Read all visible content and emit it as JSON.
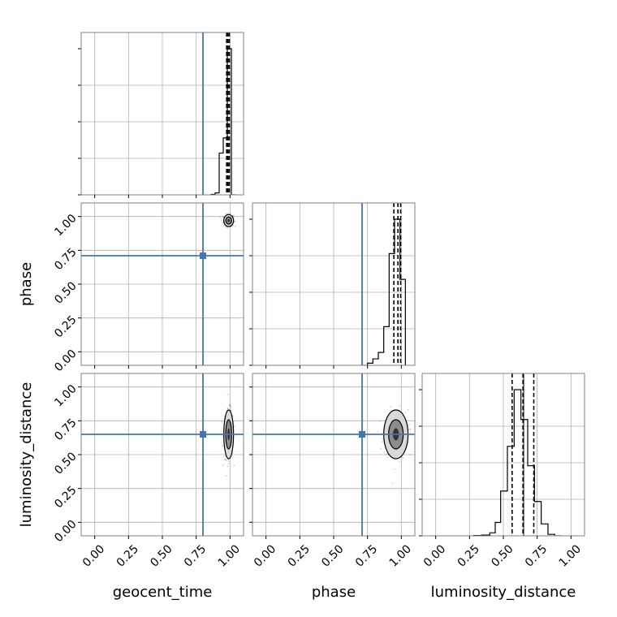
{
  "chart_data": {
    "type": "corner",
    "parameters": [
      "geocent_time",
      "phase",
      "luminosity_distance"
    ],
    "xlabels": [
      "geocent_time",
      "phase",
      "luminosity_distance"
    ],
    "ylabels": [
      "",
      "phase",
      "luminosity_distance"
    ],
    "tick_labels": [
      "0.00",
      "0.25",
      "0.50",
      "0.75",
      "1.00"
    ],
    "tick_values": [
      0.0,
      0.25,
      0.5,
      0.75,
      1.0
    ],
    "range": [
      -0.1,
      1.1
    ],
    "truths": {
      "geocent_time": 0.8,
      "phase": 0.71,
      "luminosity_distance": 0.65
    },
    "truth_color": "#4477aa",
    "grid": true,
    "histograms": [
      {
        "parameter": "geocent_time",
        "bin_edges": [
          0.86,
          0.89,
          0.92,
          0.95,
          0.98,
          1.01,
          1.04
        ],
        "counts": [
          0.002,
          0.01,
          0.22,
          0.3,
          0.77,
          0.0
        ],
        "quantile_lines": [
          0.975,
          0.985,
          0.995
        ]
      },
      {
        "parameter": "phase",
        "bin_edges": [
          0.71,
          0.75,
          0.79,
          0.83,
          0.87,
          0.91,
          0.95,
          0.99,
          1.03
        ],
        "counts": [
          0.0,
          0.005,
          0.015,
          0.03,
          0.09,
          0.26,
          0.34,
          0.2
        ],
        "quantile_lines": [
          0.945,
          0.975,
          0.995
        ]
      },
      {
        "parameter": "luminosity_distance",
        "bin_edges": [
          0.28,
          0.34,
          0.4,
          0.44,
          0.48,
          0.53,
          0.58,
          0.63,
          0.68,
          0.73,
          0.78,
          0.83,
          0.88,
          0.93
        ],
        "counts": [
          0.002,
          0.005,
          0.02,
          0.09,
          0.3,
          0.6,
          0.98,
          0.78,
          0.47,
          0.23,
          0.08,
          0.01,
          0.0
        ],
        "quantile_lines": [
          0.565,
          0.645,
          0.725
        ]
      }
    ],
    "scatter_panels": [
      {
        "x": "geocent_time",
        "y": "phase",
        "center": [
          0.99,
          0.97
        ],
        "spread": [
          0.018,
          0.022
        ]
      },
      {
        "x": "geocent_time",
        "y": "luminosity_distance",
        "center": [
          0.99,
          0.65
        ],
        "spread": [
          0.018,
          0.09
        ]
      },
      {
        "x": "phase",
        "y": "luminosity_distance",
        "center": [
          0.96,
          0.65
        ],
        "spread": [
          0.045,
          0.09
        ]
      }
    ]
  }
}
